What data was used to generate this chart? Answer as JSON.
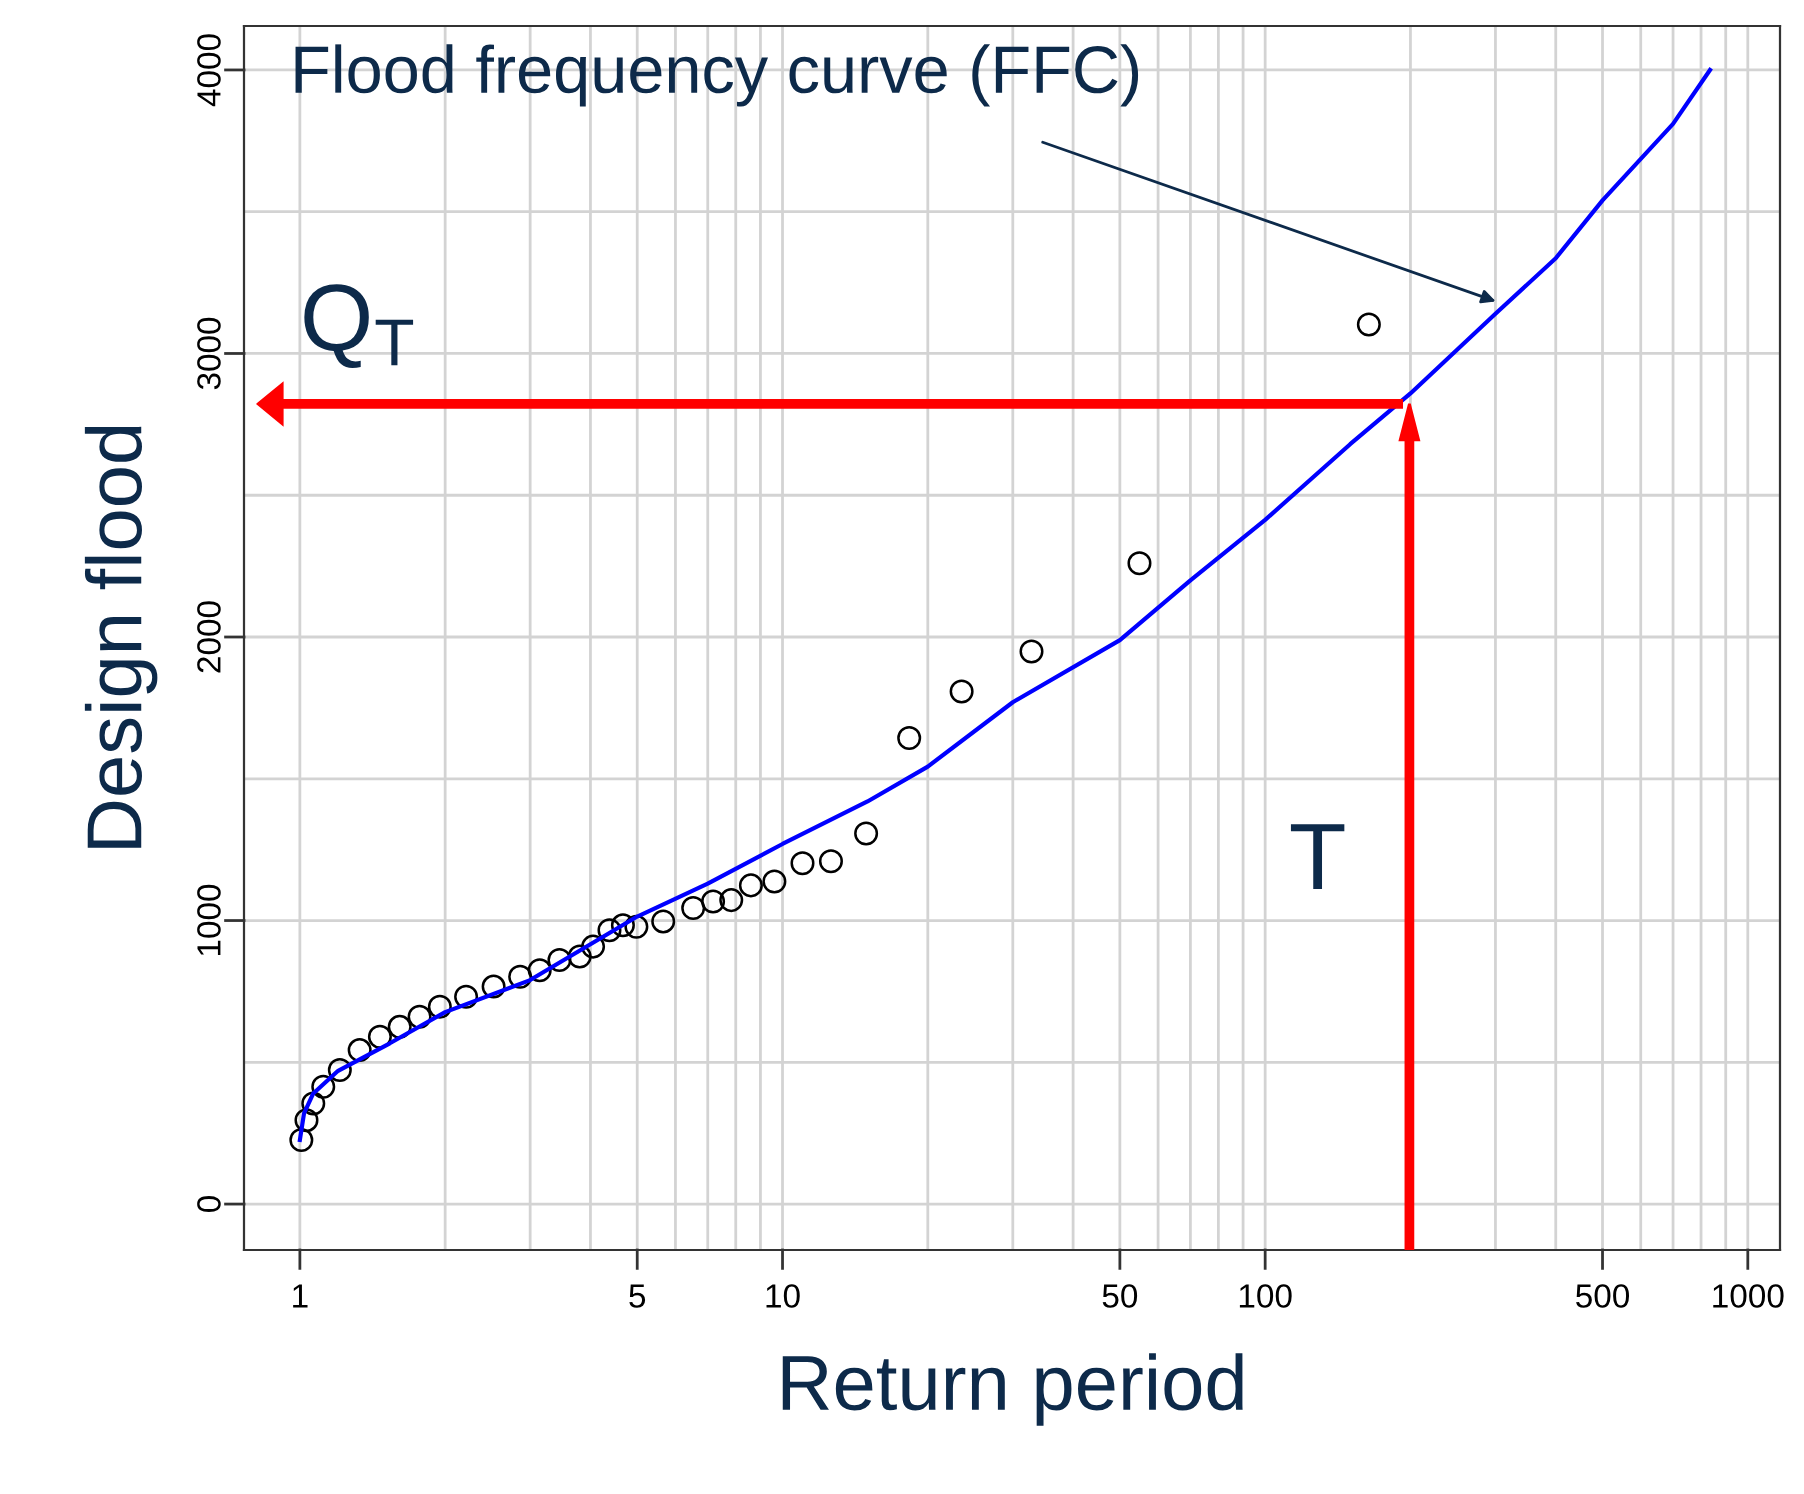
{
  "chart_data": {
    "type": "scatter",
    "xlabel": "Return period",
    "ylabel": "Design flood",
    "log": "x",
    "grid": true,
    "xlim": [
      0.766,
      1166
    ],
    "ylim": [
      -162,
      4155
    ],
    "xticks": [
      1,
      {
        "value": 2,
        "label": null
      },
      {
        "value": 3,
        "label": null
      },
      {
        "value": 4,
        "label": null
      },
      5,
      {
        "value": 6,
        "label": null
      },
      {
        "value": 7,
        "label": null
      },
      {
        "value": 8,
        "label": null
      },
      {
        "value": 9,
        "label": null
      },
      10,
      {
        "value": 20,
        "label": null
      },
      {
        "value": 30,
        "label": null
      },
      {
        "value": 40,
        "label": null
      },
      50,
      {
        "value": 60,
        "label": null
      },
      {
        "value": 70,
        "label": null
      },
      {
        "value": 80,
        "label": null
      },
      {
        "value": 90,
        "label": null
      },
      100,
      {
        "value": 200,
        "label": null
      },
      {
        "value": 300,
        "label": null
      },
      {
        "value": 400,
        "label": null
      },
      500,
      {
        "value": 600,
        "label": null
      },
      {
        "value": 700,
        "label": null
      },
      {
        "value": 800,
        "label": null
      },
      {
        "value": 900,
        "label": null
      },
      1000
    ],
    "yticks": [
      0,
      {
        "value": 500,
        "label": null
      },
      1000,
      {
        "value": 1500,
        "label": null
      },
      2000,
      {
        "value": 2500,
        "label": null
      },
      3000,
      {
        "value": 3500,
        "label": null
      },
      4000
    ],
    "series": [
      {
        "marker": "circle",
        "color": "#000000",
        "x": [
          1.007,
          1.032,
          1.066,
          1.118,
          1.21,
          1.33,
          1.465,
          1.61,
          1.77,
          1.95,
          2.21,
          2.52,
          2.86,
          3.14,
          3.45,
          3.8,
          4.05,
          4.38,
          4.67,
          4.98,
          5.66,
          6.53,
          7.18,
          7.83,
          8.6,
          9.62,
          11.0,
          12.6,
          14.9,
          18.3,
          23.5,
          32.8,
          54.9,
          164
        ],
        "values": [
          226,
          296,
          355,
          414,
          473,
          543,
          590,
          625,
          661,
          696,
          731,
          767,
          802,
          825,
          861,
          873,
          908,
          966,
          983,
          978,
          997,
          1044,
          1067,
          1072,
          1124,
          1138,
          1202,
          1209,
          1307,
          1644,
          1808,
          1949,
          2260,
          3102
        ]
      },
      {
        "type": "line",
        "marker": "none",
        "line_style": "solid",
        "color": "#0000ff",
        "x": [
          1.0,
          1.02,
          1.066,
          1.2,
          1.536,
          2,
          3,
          5,
          7,
          10,
          15,
          20,
          30,
          50,
          70,
          100,
          150,
          200,
          300,
          400,
          500,
          700,
          835
        ],
        "values": [
          226,
          320,
          390,
          470,
          567,
          677,
          790,
          1014,
          1130,
          1270,
          1420,
          1543,
          1770,
          1989,
          2200,
          2413,
          2680,
          2859,
          3140,
          3336,
          3540,
          3810,
          4000
        ]
      }
    ],
    "ref_lines": [
      {
        "axis": "x",
        "value": 199,
        "label": "T",
        "color": "#ff0000"
      },
      {
        "axis": "y",
        "value": 2822,
        "label": "Q$_{T}$",
        "color": "#ff0000"
      }
    ],
    "annotations": [
      "Flood frequency curve (FFC)"
    ]
  }
}
